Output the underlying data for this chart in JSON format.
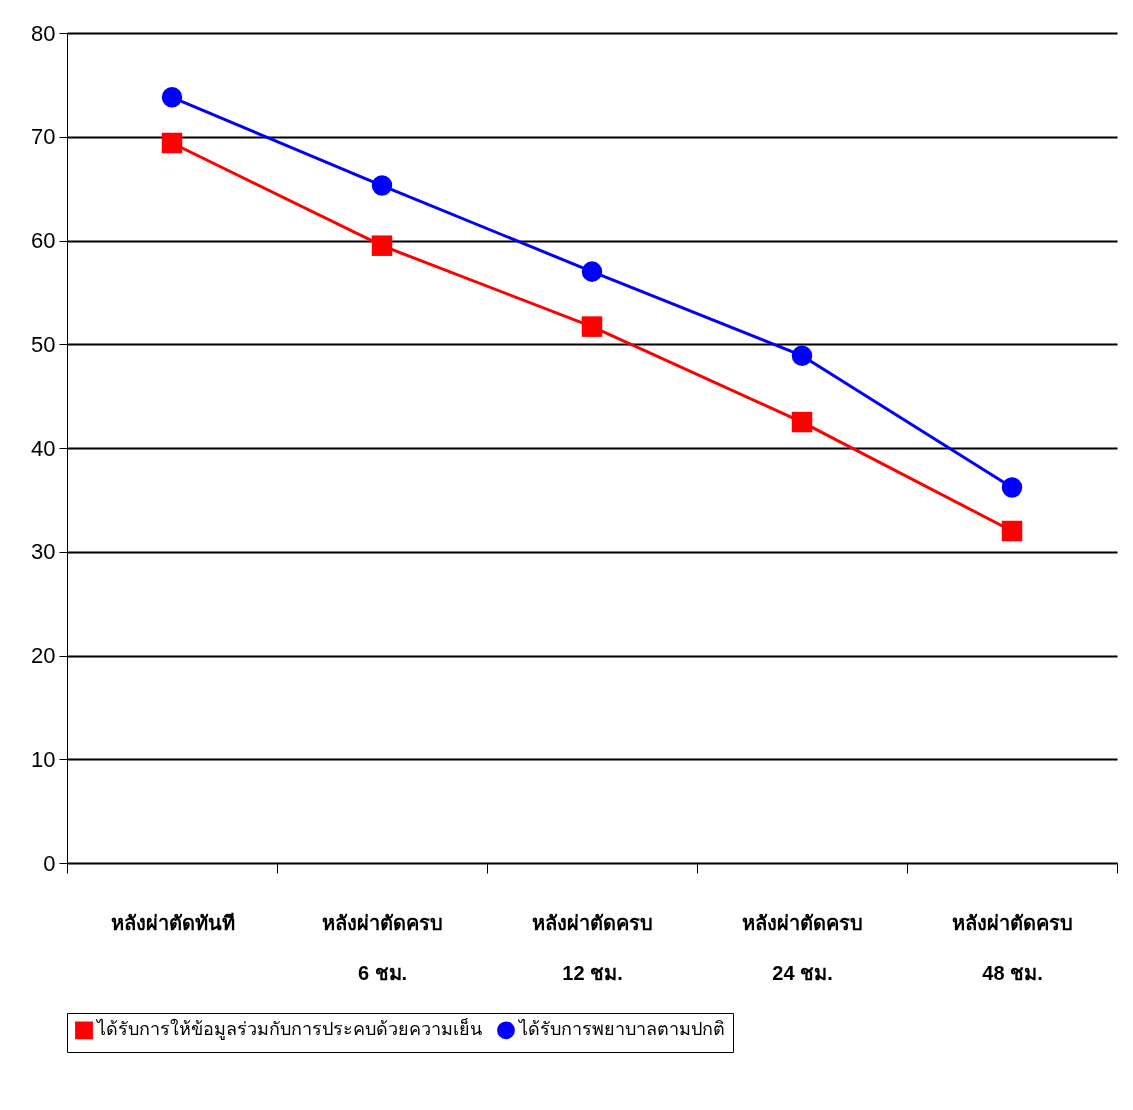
{
  "chart_data": {
    "type": "line",
    "categories": [
      "หลังผ่าตัดทันที",
      "หลังผ่าตัดครบ\n6 ชม.",
      "หลังผ่าตัดครบ\n12 ชม.",
      "หลังผ่าตัดครบ\n24 ชม.",
      "หลังผ่าตัดครบ\n48 ชม."
    ],
    "series": [
      {
        "name": "ได้รับการให้ข้อมูลร่วมกับการประคบด้วยความเย็น",
        "color": "#ff0000",
        "marker": "square",
        "values": [
          69.4,
          59.5,
          51.7,
          42.5,
          32.0
        ]
      },
      {
        "name": "ได้รับการพยาบาลตามปกติ",
        "color": "#0000ff",
        "marker": "circle",
        "values": [
          73.8,
          65.3,
          57.0,
          48.9,
          36.2
        ]
      }
    ],
    "ylim": [
      0,
      80
    ],
    "yticks": [
      0,
      10,
      20,
      30,
      40,
      50,
      60,
      70,
      80
    ],
    "grid": "y",
    "legend": "bottom"
  }
}
